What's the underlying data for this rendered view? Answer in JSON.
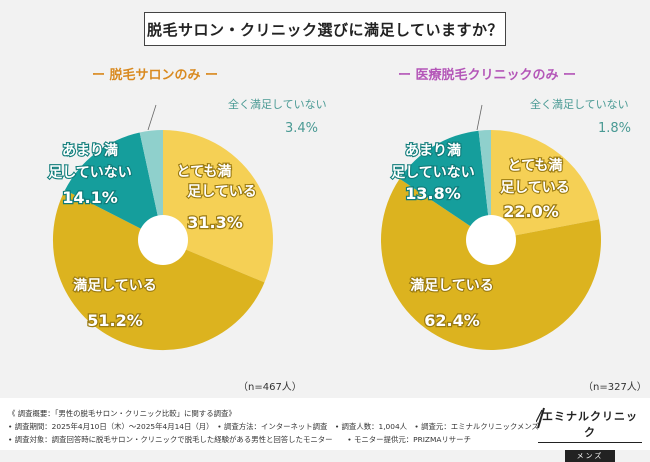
{
  "header": {
    "title": "脱毛サロン・クリニック選びに満足していますか？"
  },
  "colors": {
    "very_satisfied": "#f5d055",
    "satisfied": "#dcb31f",
    "not_very": "#159e9c",
    "not_at_all": "#8fd0cc",
    "left_title": "#d98a20",
    "right_title": "#b456b8"
  },
  "chart_data": [
    {
      "type": "pie",
      "title": "ー 脱毛サロンのみ ー",
      "n_label": "（n=467人）",
      "categories": [
        "とても満足している",
        "満足している",
        "あまり満足していない",
        "全く満足していない"
      ],
      "values": [
        31.3,
        51.2,
        14.1,
        3.4
      ],
      "value_labels": [
        "31.3%",
        "51.2%",
        "14.1%",
        "3.4%"
      ]
    },
    {
      "type": "pie",
      "title": "ー 医療脱毛クリニックのみ ー",
      "n_label": "（n=327人）",
      "categories": [
        "とても満足している",
        "満足している",
        "あまり満足していない",
        "全く満足していない"
      ],
      "values": [
        22.0,
        62.4,
        13.8,
        1.8
      ],
      "value_labels": [
        "22.0%",
        "62.4%",
        "13.8%",
        "1.8%"
      ]
    }
  ],
  "footer": {
    "lines": [
      "《 調査概要：「男性の脱毛サロン・クリニック比較」に関する調査》",
      "• 調査期間：2025年4月10日（木）〜2025年4月14日（月）　• 調査方法：インターネット調査　• 調査人数：1,004人　• 調査元：エミナルクリニックメンズ",
      "• 調査対象：調査回答時に脱毛サロン・クリニックで脱毛した経験がある男性と回答したモニター　　• モニター提供元：PRIZMAリサーチ"
    ],
    "logo_main": "エミナルクリニック",
    "logo_sub": "メンズ"
  }
}
